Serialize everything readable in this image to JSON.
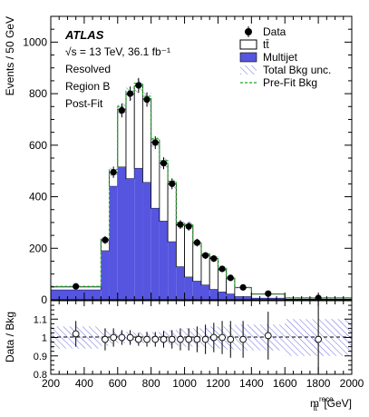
{
  "chart_data": {
    "type": "bar",
    "experiment": "ATLAS",
    "energy_line": "√s = 13 TeV, 36.1 fb⁻¹",
    "annotations": [
      "Resolved",
      "Region B",
      "Post-Fit"
    ],
    "xlabel": "m_tt̄^reco [GeV]",
    "xlabel_main": "m",
    "xlabel_sup": "reco",
    "xlabel_sub": "tt̄",
    "xlabel_unit": " [GeV]",
    "xlim": [
      200,
      2000
    ],
    "x_ticks": [
      "200",
      "400",
      "600",
      "800",
      "1000",
      "1200",
      "1400",
      "1600",
      "1800",
      "2000"
    ],
    "top_panel": {
      "ylabel": "Events / 50 GeV",
      "ylim": [
        0,
        1100
      ],
      "y_ticks": [
        "0",
        "200",
        "400",
        "600",
        "800",
        "1000"
      ]
    },
    "ratio_panel": {
      "ylabel": "Data / Bkg",
      "ylim": [
        0.8,
        1.2
      ],
      "y_ticks": [
        "0.8",
        "0.9",
        "1",
        "1.1"
      ]
    },
    "legend": {
      "placement": "top-right",
      "entries": [
        {
          "label": "Data",
          "kind": "marker"
        },
        {
          "label": "tt̄",
          "kind": "box-white"
        },
        {
          "label": "Multijet",
          "kind": "box-blue"
        },
        {
          "label": "Total Bkg unc.",
          "kind": "hatch"
        },
        {
          "label": "Pre-Fit Bkg",
          "kind": "dashed-line"
        }
      ]
    },
    "bin_edges": [
      200,
      500,
      550,
      600,
      650,
      700,
      750,
      800,
      850,
      900,
      950,
      1000,
      1050,
      1100,
      1150,
      1200,
      1250,
      1300,
      1400,
      1600,
      2000
    ],
    "series": [
      {
        "name": "Multijet",
        "values": [
          38,
          190,
          440,
          515,
          470,
          510,
          455,
          355,
          305,
          225,
          128,
          88,
          72,
          57,
          40,
          30,
          22,
          12,
          6,
          2
        ]
      },
      {
        "name": "tt̄",
        "values": [
          12,
          40,
          55,
          225,
          330,
          320,
          325,
          257,
          225,
          225,
          162,
          200,
          148,
          115,
          120,
          88,
          62,
          35,
          16,
          5
        ]
      },
      {
        "name": "Pre-Fit Bkg",
        "values": [
          52,
          235,
          505,
          750,
          810,
          840,
          790,
          625,
          540,
          460,
          295,
          290,
          225,
          178,
          165,
          122,
          88,
          48,
          23,
          8
        ]
      }
    ],
    "data": {
      "x": [
        350,
        525,
        575,
        625,
        675,
        725,
        775,
        825,
        875,
        925,
        975,
        1025,
        1075,
        1125,
        1175,
        1225,
        1275,
        1350,
        1500,
        1800
      ],
      "y": [
        52,
        232,
        495,
        735,
        800,
        832,
        777,
        610,
        530,
        450,
        292,
        285,
        222,
        172,
        160,
        120,
        85,
        48,
        24,
        7
      ],
      "err": [
        7,
        15,
        22,
        27,
        28,
        29,
        28,
        25,
        23,
        21,
        17,
        17,
        15,
        13,
        13,
        11,
        9,
        7,
        5,
        3
      ]
    },
    "ratio": {
      "x": [
        350,
        525,
        575,
        625,
        675,
        725,
        775,
        825,
        875,
        925,
        975,
        1025,
        1075,
        1125,
        1175,
        1225,
        1275,
        1350,
        1500,
        1800
      ],
      "y": [
        1.02,
        0.99,
        1.0,
        1.0,
        1.0,
        0.99,
        0.99,
        0.99,
        0.99,
        0.99,
        0.99,
        0.99,
        0.99,
        0.99,
        1.0,
        1.0,
        0.99,
        0.99,
        1.01,
        0.99
      ],
      "err": [
        0.07,
        0.06,
        0.05,
        0.04,
        0.04,
        0.035,
        0.04,
        0.04,
        0.045,
        0.05,
        0.06,
        0.06,
        0.07,
        0.08,
        0.08,
        0.09,
        0.1,
        0.1,
        0.13,
        0.23
      ]
    },
    "unc_band": {
      "edges": [
        200,
        500,
        550,
        600,
        650,
        700,
        750,
        800,
        850,
        900,
        950,
        1000,
        1050,
        1100,
        1150,
        1200,
        1250,
        1300,
        1400,
        1600,
        2000
      ],
      "rel": [
        0.06,
        0.045,
        0.035,
        0.03,
        0.03,
        0.03,
        0.03,
        0.03,
        0.035,
        0.04,
        0.045,
        0.05,
        0.05,
        0.055,
        0.06,
        0.06,
        0.065,
        0.07,
        0.07,
        0.1
      ]
    },
    "colors": {
      "multijet": "#5555e0",
      "ttbar": "#ffffff",
      "prefit": "#1fa51f",
      "hatch": "#6a6ae0",
      "data": "#000000"
    }
  }
}
